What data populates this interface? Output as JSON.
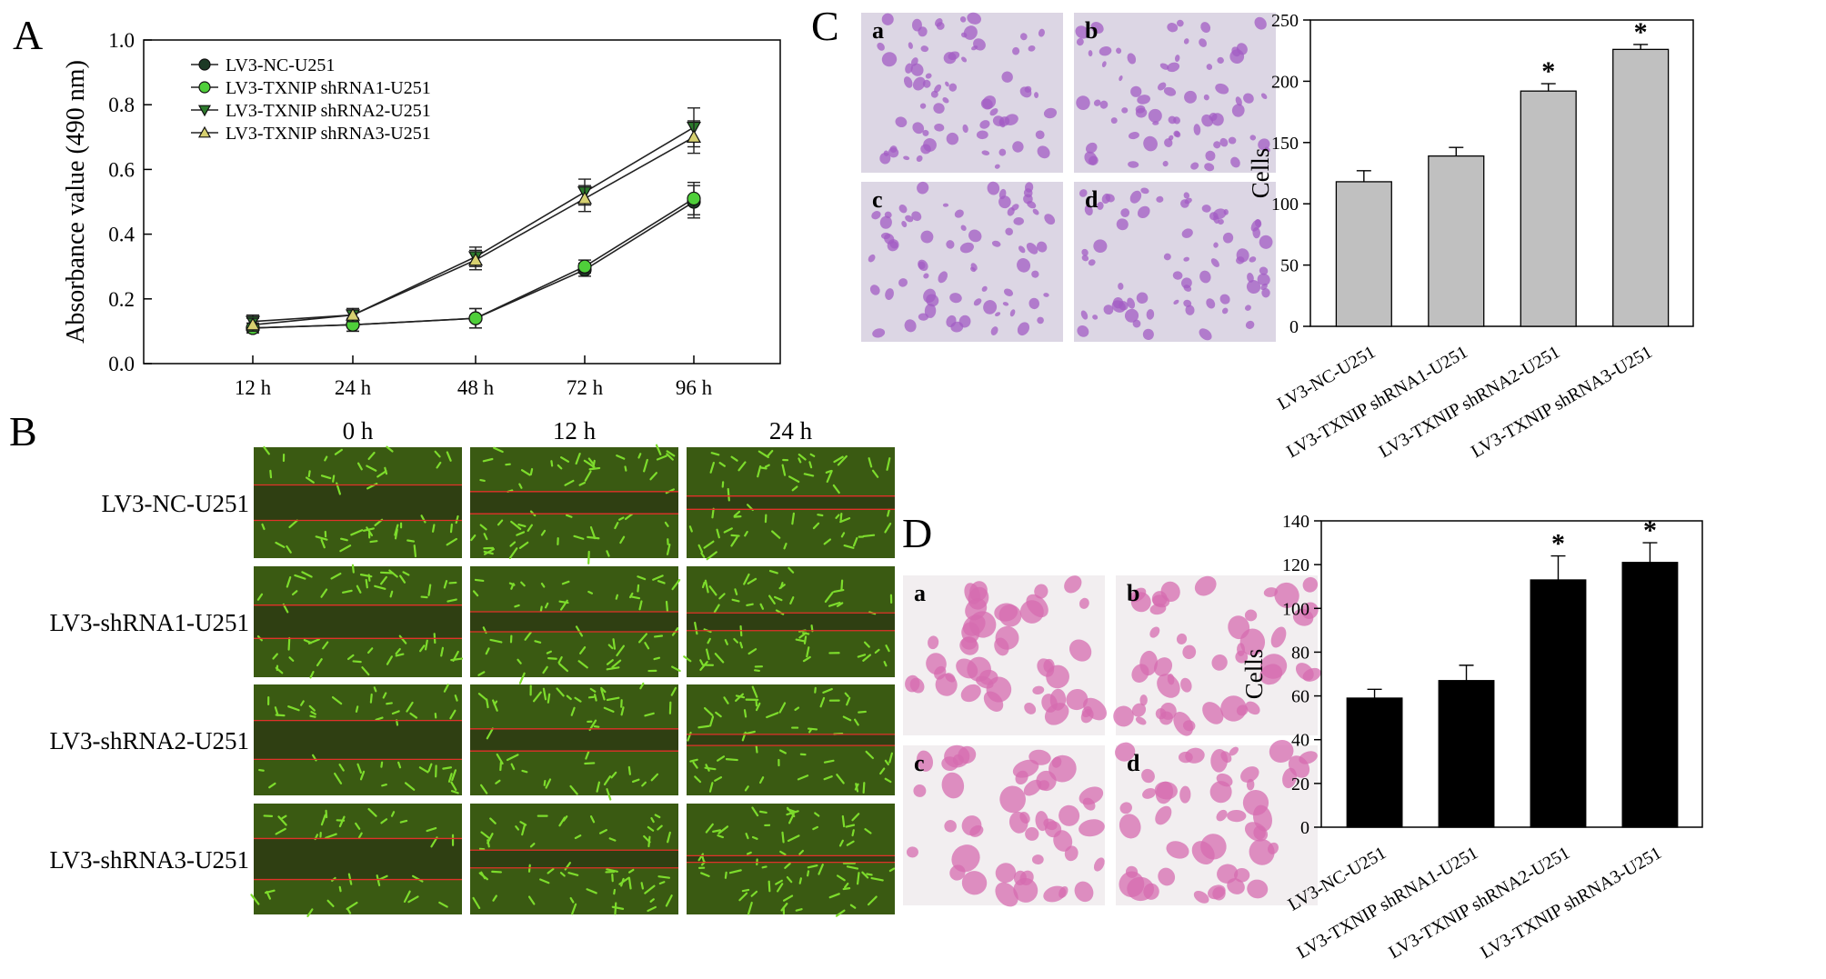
{
  "panel_letters": {
    "A": "A",
    "B": "B",
    "C": "C",
    "D": "D"
  },
  "panel_b": {
    "time_headers": [
      "0 h",
      "12 h",
      "24 h"
    ],
    "row_labels": [
      "LV3-NC-U251",
      "LV3-shRNA1-U251",
      "LV3-shRNA2-U251",
      "LV3-shRNA3-U251"
    ],
    "image_color": "#3a5a12",
    "cell_color": "#7ddc2c",
    "line_color": "#e0322a",
    "wound_fraction": [
      [
        0.32,
        0.2,
        0.12
      ],
      [
        0.3,
        0.18,
        0.16
      ],
      [
        0.35,
        0.2,
        0.1
      ],
      [
        0.37,
        0.16,
        0.06
      ]
    ]
  },
  "panel_c": {
    "sub_labels": [
      "a",
      "b",
      "c",
      "d"
    ],
    "image_color": "#dcd6e4",
    "cell_color": "#a35cc4"
  },
  "panel_d": {
    "sub_labels": [
      "a",
      "b",
      "c",
      "d"
    ],
    "image_color": "#f2eef0",
    "cell_color": "#d66cb0"
  },
  "chart_data": [
    {
      "id": "A",
      "type": "line",
      "categories": [
        "12 h",
        "24 h",
        "48 h",
        "72 h",
        "96 h"
      ],
      "ylabel": "Absorbance value (490 nm)",
      "xlabel": "",
      "ylim": [
        0,
        1.0
      ],
      "yticks": [
        "0.0",
        "0.2",
        "0.4",
        "0.6",
        "0.8",
        "1.0"
      ],
      "legend_position": "top-left",
      "series": [
        {
          "name": "LV3-NC-U251",
          "values": [
            0.11,
            0.12,
            0.14,
            0.29,
            0.5
          ],
          "errors": [
            0.015,
            0.02,
            0.03,
            0.02,
            0.05
          ],
          "color": "#1d3a26",
          "marker": "circle"
        },
        {
          "name": "LV3-TXNIP shRNA1-U251",
          "values": [
            0.11,
            0.12,
            0.14,
            0.3,
            0.51
          ],
          "errors": [
            0.015,
            0.02,
            0.03,
            0.02,
            0.05
          ],
          "color": "#4fcf3a",
          "marker": "circle"
        },
        {
          "name": "LV3-TXNIP shRNA2-U251",
          "values": [
            0.13,
            0.15,
            0.33,
            0.53,
            0.73
          ],
          "errors": [
            0.02,
            0.02,
            0.03,
            0.04,
            0.06
          ],
          "color": "#2c7a2c",
          "marker": "triangle-down"
        },
        {
          "name": "LV3-TXNIP shRNA3-U251",
          "values": [
            0.12,
            0.15,
            0.32,
            0.51,
            0.7
          ],
          "errors": [
            0.02,
            0.02,
            0.03,
            0.04,
            0.05
          ],
          "color": "#d6d070",
          "marker": "triangle-up"
        }
      ]
    },
    {
      "id": "C",
      "type": "bar",
      "categories": [
        "LV3-NC-U251",
        "LV3-TXNIP shRNA1-U251",
        "LV3-TXNIP shRNA2-U251",
        "LV3-TXNIP shRNA3-U251"
      ],
      "values": [
        118,
        139,
        192,
        226
      ],
      "errors": [
        9,
        7,
        6,
        4
      ],
      "significance": [
        "",
        "",
        "*",
        "*"
      ],
      "ylabel": "Cells",
      "xlabel": "",
      "ylim": [
        0,
        250
      ],
      "yticks": [
        "0",
        "50",
        "100",
        "150",
        "200",
        "250"
      ],
      "bar_color": "#c0c0c0"
    },
    {
      "id": "D",
      "type": "bar",
      "categories": [
        "LV3-NC-U251",
        "LV3-TXNIP shRNA1-U251",
        "LV3-TXNIP shRNA2-U251",
        "LV3-TXNIP shRNA3-U251"
      ],
      "values": [
        59,
        67,
        113,
        121
      ],
      "errors": [
        4,
        7,
        11,
        9
      ],
      "significance": [
        "",
        "",
        "*",
        "*"
      ],
      "ylabel": "Cells",
      "xlabel": "",
      "ylim": [
        0,
        140
      ],
      "yticks": [
        "0",
        "20",
        "40",
        "60",
        "80",
        "100",
        "120",
        "140"
      ],
      "bar_color": "#000000"
    }
  ]
}
